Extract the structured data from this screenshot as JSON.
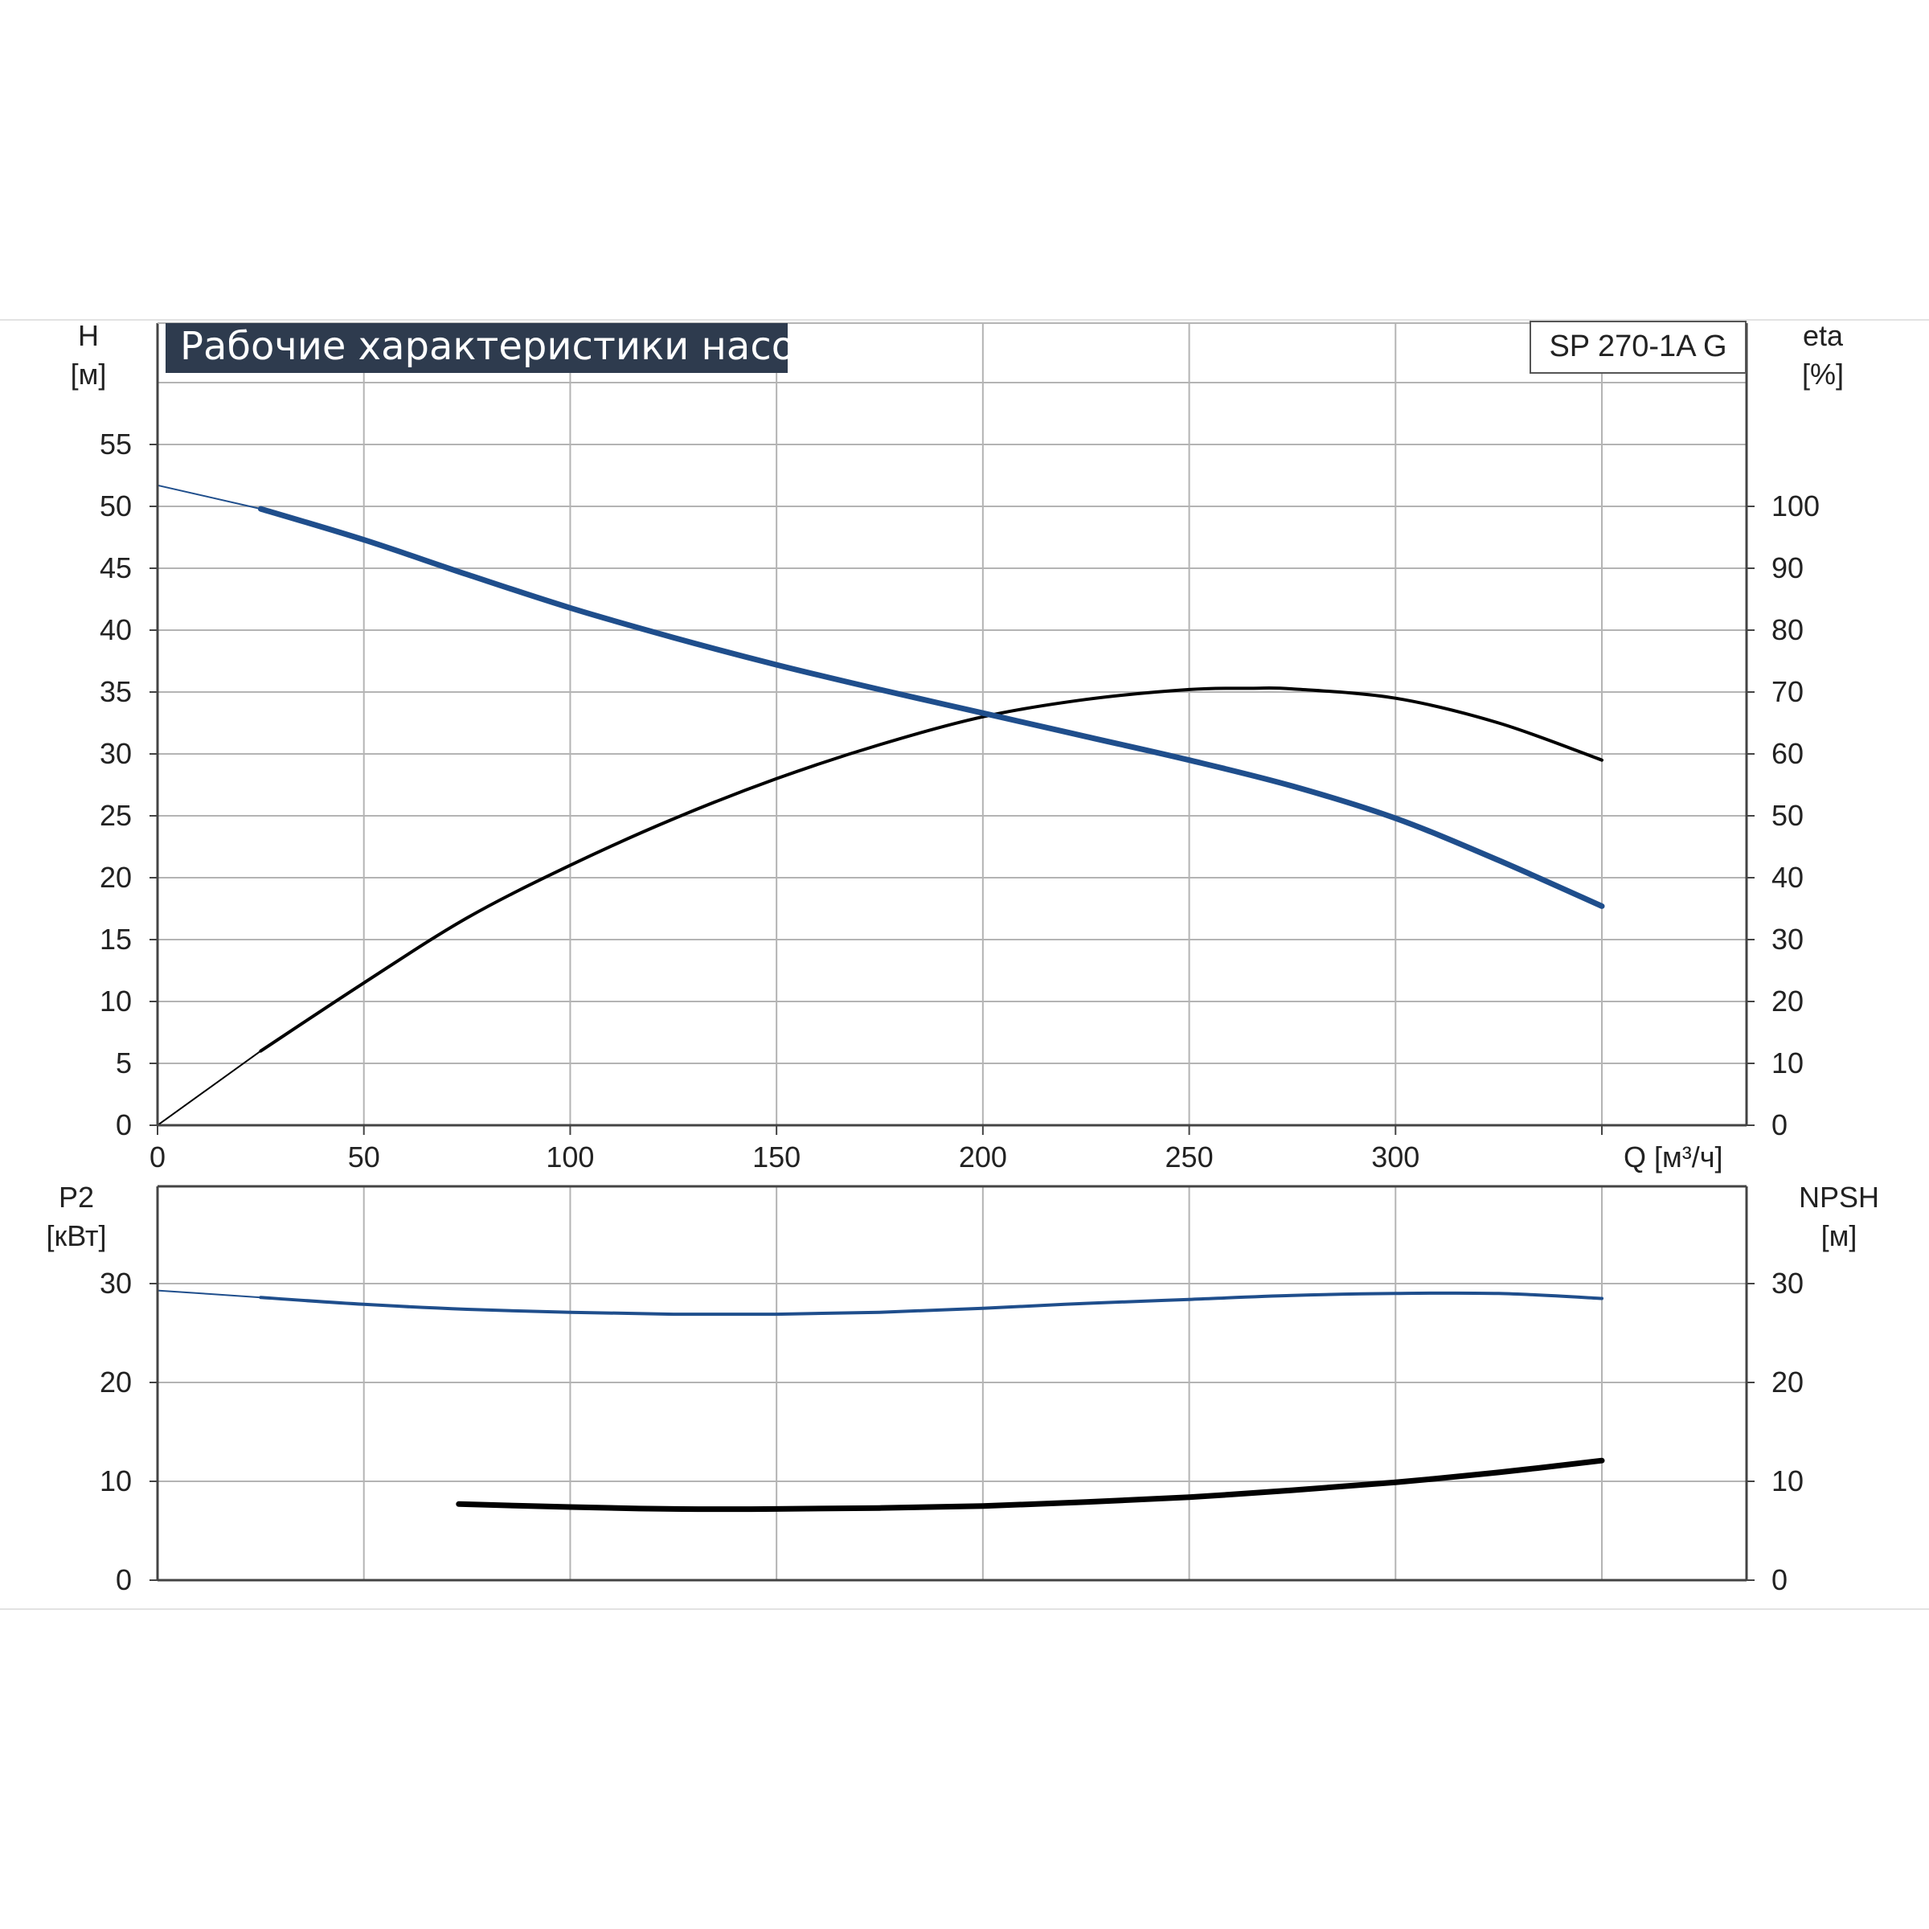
{
  "title": "Рабочие характеристики насоса",
  "model": "SP 270-1A G",
  "colors": {
    "blue": "#1f4e8c",
    "black": "#000000",
    "grid": "#b4b4b4",
    "banner": "#2e3b4e",
    "axis": "#444444"
  },
  "top": {
    "left_axis": {
      "name": "H",
      "unit": "[м]",
      "ticks": [
        "0",
        "5",
        "10",
        "15",
        "20",
        "25",
        "30",
        "35",
        "40",
        "45",
        "50",
        "55"
      ]
    },
    "right_axis": {
      "name": "eta",
      "unit": "[%]",
      "ticks": [
        "0",
        "10",
        "20",
        "30",
        "40",
        "50",
        "60",
        "70",
        "80",
        "90",
        "100"
      ]
    }
  },
  "x_axis": {
    "label": "Q [м³/ч]",
    "ticks": [
      "0",
      "50",
      "100",
      "150",
      "200",
      "250",
      "300"
    ]
  },
  "bottom": {
    "left_axis": {
      "name": "P2",
      "unit": "[кВт]",
      "ticks": [
        "0",
        "10",
        "20",
        "30"
      ]
    },
    "right_axis": {
      "name": "NPSH",
      "unit": "[м]",
      "ticks": [
        "0",
        "10",
        "20",
        "30"
      ]
    }
  },
  "chart_data": [
    {
      "type": "line",
      "panel": "top",
      "title": "Рабочие характеристики насоса",
      "xlabel": "Q [м³/ч]",
      "ylabel": "H [м]",
      "y2label": "eta [%]",
      "xlim": [
        0,
        385
      ],
      "ylim": [
        0,
        60
      ],
      "y2lim": [
        0,
        120
      ],
      "x_ticks": [
        0,
        50,
        100,
        150,
        200,
        250,
        300
      ],
      "y_ticks": [
        0,
        5,
        10,
        15,
        20,
        25,
        30,
        35,
        40,
        45,
        50,
        55
      ],
      "y2_ticks": [
        0,
        10,
        20,
        30,
        40,
        50,
        60,
        70,
        80,
        90,
        100
      ],
      "grid": true,
      "series": [
        {
          "name": "H",
          "axis": "left",
          "color": "#1f4e8c",
          "x": [
            0,
            25,
            50,
            75,
            100,
            125,
            150,
            175,
            200,
            225,
            250,
            275,
            300,
            325,
            350
          ],
          "y": [
            51.7,
            49.8,
            47.3,
            44.5,
            41.8,
            39.4,
            37.2,
            35.2,
            33.3,
            31.4,
            29.5,
            27.4,
            24.8,
            21.4,
            17.7
          ],
          "extrapolated_until": 25
        },
        {
          "name": "eta",
          "axis": "right",
          "color": "#000000",
          "x": [
            0,
            25,
            50,
            75,
            100,
            125,
            150,
            175,
            200,
            225,
            250,
            265,
            275,
            300,
            325,
            350
          ],
          "y": [
            0,
            12,
            23,
            33.5,
            42,
            49.5,
            56,
            61.5,
            66,
            68.8,
            70.4,
            70.6,
            70.5,
            69,
            65,
            59
          ],
          "extrapolated_until": 25
        }
      ]
    },
    {
      "type": "line",
      "panel": "bottom",
      "xlabel": "Q [м³/ч]",
      "ylabel": "P2 [кВт]",
      "y2label": "NPSH [м]",
      "xlim": [
        0,
        385
      ],
      "ylim": [
        0,
        40
      ],
      "y2lim": [
        0,
        40
      ],
      "x_ticks": [
        0,
        50,
        100,
        150,
        200,
        250,
        300
      ],
      "y_ticks": [
        0,
        10,
        20,
        30
      ],
      "y2_ticks": [
        0,
        10,
        20,
        30
      ],
      "grid": true,
      "series": [
        {
          "name": "P2",
          "axis": "left",
          "color": "#1f4e8c",
          "x": [
            0,
            25,
            50,
            75,
            100,
            125,
            150,
            175,
            200,
            225,
            250,
            275,
            300,
            325,
            350
          ],
          "y": [
            29.3,
            28.6,
            27.9,
            27.4,
            27.1,
            26.9,
            26.9,
            27.1,
            27.5,
            28.0,
            28.4,
            28.8,
            29.0,
            29.0,
            28.5
          ],
          "extrapolated_until": 25
        },
        {
          "name": "NPSH",
          "axis": "right",
          "color": "#000000",
          "x": [
            73,
            100,
            125,
            150,
            175,
            200,
            225,
            250,
            275,
            300,
            325,
            350
          ],
          "y": [
            7.7,
            7.4,
            7.2,
            7.2,
            7.3,
            7.5,
            7.9,
            8.4,
            9.1,
            9.9,
            10.9,
            12.1
          ]
        }
      ]
    }
  ]
}
